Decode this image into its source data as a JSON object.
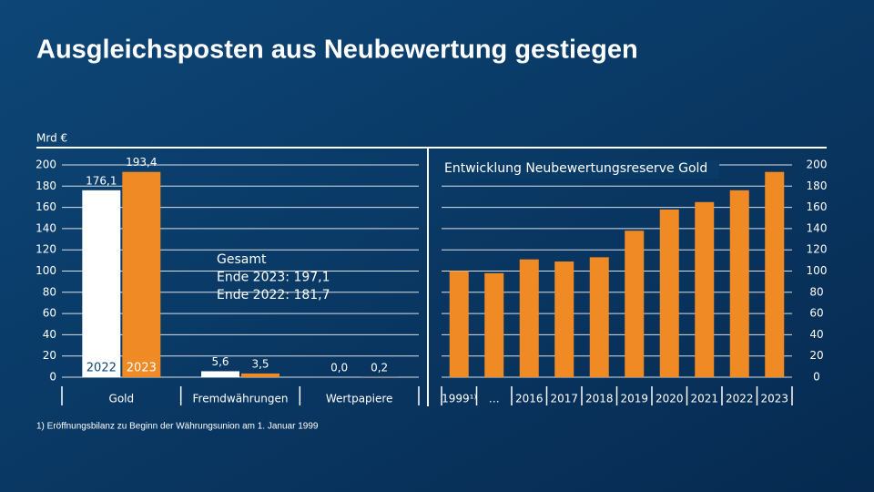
{
  "title": "Ausgleichsposten aus Neubewertung gestiegen",
  "footnote": "1) Eröffnungsbilanz zu Beginn der Währungsunion am 1. Januar 1999",
  "chart_data": [
    {
      "type": "bar",
      "ylabel": "Mrd €",
      "categories": [
        "Gold",
        "Fremdwährungen",
        "Wertpapiere"
      ],
      "series": [
        {
          "name": "2022",
          "color": "#ffffff",
          "values": [
            176.1,
            5.6,
            0
          ],
          "value_labels": [
            "176,1",
            "5,6",
            "0,0"
          ]
        },
        {
          "name": "2023",
          "color": "#f08a24",
          "values": [
            193.4,
            3.5,
            0.2
          ],
          "value_labels": [
            "193,4",
            "3,5",
            "0,2"
          ]
        }
      ],
      "ylim": [
        0,
        200
      ],
      "yticks": [
        0,
        20,
        40,
        60,
        80,
        100,
        120,
        140,
        160,
        180,
        200
      ],
      "grid": true,
      "annotations": [
        "Gesamt",
        "Ende 2023: 197,1",
        "Ende 2022: 181,7"
      ]
    },
    {
      "type": "bar",
      "title": "Entwicklung Neubewertungsreserve Gold",
      "categories": [
        "1999¹⁾",
        "…",
        "2016",
        "2017",
        "2018",
        "2019",
        "2020",
        "2021",
        "2022",
        "2023"
      ],
      "values": [
        100,
        98,
        111,
        109,
        113,
        138,
        158,
        165,
        176.1,
        193.4
      ],
      "color": "#f08a24",
      "ylim": [
        0,
        200
      ],
      "yticks": [
        0,
        20,
        40,
        60,
        80,
        100,
        120,
        140,
        160,
        180,
        200
      ],
      "grid": true
    }
  ]
}
